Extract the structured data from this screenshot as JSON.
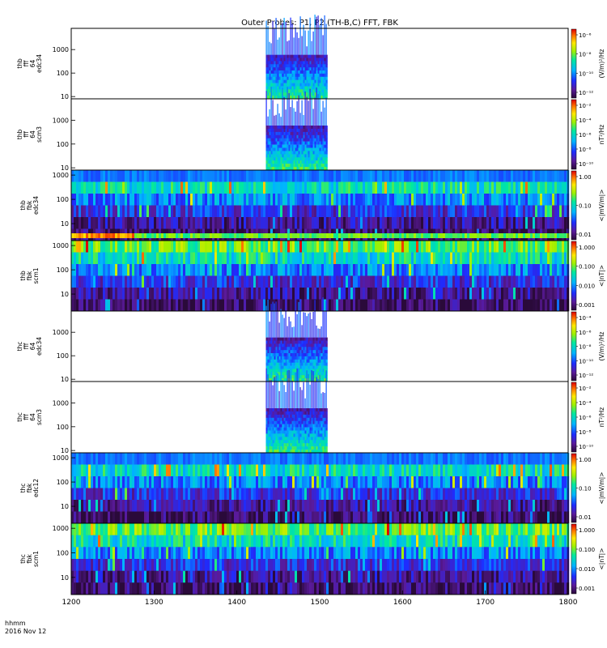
{
  "title": "Outer Probes: P1, P2 (TH-B,C) FFT, FBK",
  "time_label": {
    "line1": "hhmm",
    "line2": "2016 Nov 12"
  },
  "chart_data": {
    "type": "heatmap",
    "x_ticks": [
      "1200",
      "1300",
      "1400",
      "1500",
      "1600",
      "1700",
      "1800"
    ],
    "x_range": [
      1200,
      1800
    ],
    "panels": [
      {
        "ylabel": [
          "thb",
          "fff",
          "64",
          "edc34"
        ],
        "y_ticks": [
          "1000",
          "100",
          "10"
        ],
        "y_range": [
          8,
          8000
        ],
        "active_range": [
          1435,
          1508
        ],
        "colorbar_unit": "(V/m)²/Hz",
        "colorbar_ticks": [
          "10⁻⁶",
          "10⁻⁸",
          "10⁻¹⁰",
          "10⁻¹²"
        ]
      },
      {
        "ylabel": [
          "thb",
          "fff",
          "64",
          "scm3"
        ],
        "y_ticks": [
          "1000",
          "100",
          "10"
        ],
        "y_range": [
          8,
          8000
        ],
        "active_range": [
          1435,
          1508
        ],
        "colorbar_unit": "nT²/Hz",
        "colorbar_ticks": [
          "10⁻²",
          "10⁻⁴",
          "10⁻⁶",
          "10⁻⁸",
          "10⁻¹⁰"
        ]
      },
      {
        "ylabel": [
          "thb",
          "fbk",
          "edc34"
        ],
        "y_ticks": [
          "1000",
          "100",
          "10"
        ],
        "y_range": [
          2,
          1600
        ],
        "active_range": [
          1200,
          1800
        ],
        "colorbar_unit": "<|mV/m|>",
        "colorbar_ticks": [
          "1.00",
          "0.10",
          "0.01"
        ]
      },
      {
        "ylabel": [
          "thb",
          "fbk",
          "scm1"
        ],
        "y_ticks": [
          "1000",
          "100",
          "10"
        ],
        "y_range": [
          2,
          1600
        ],
        "active_range": [
          1200,
          1800
        ],
        "colorbar_unit": "<|nT|>",
        "colorbar_ticks": [
          "1.000",
          "0.100",
          "0.010",
          "0.001"
        ]
      },
      {
        "ylabel": [
          "thc",
          "fff",
          "64",
          "edc34"
        ],
        "y_ticks": [
          "1000",
          "100",
          "10"
        ],
        "y_range": [
          8,
          8000
        ],
        "active_range": [
          1435,
          1508
        ],
        "colorbar_unit": "(V/m)²/Hz",
        "colorbar_ticks": [
          "10⁻⁴",
          "10⁻⁶",
          "10⁻⁸",
          "10⁻¹⁰",
          "10⁻¹²"
        ]
      },
      {
        "ylabel": [
          "thc",
          "fff",
          "64",
          "scm3"
        ],
        "y_ticks": [
          "1000",
          "100",
          "10"
        ],
        "y_range": [
          8,
          8000
        ],
        "active_range": [
          1435,
          1508
        ],
        "colorbar_unit": "nT²/Hz",
        "colorbar_ticks": [
          "10⁻²",
          "10⁻⁴",
          "10⁻⁶",
          "10⁻⁸",
          "10⁻¹⁰"
        ]
      },
      {
        "ylabel": [
          "thc",
          "fbk",
          "edc12"
        ],
        "y_ticks": [
          "1000",
          "100",
          "10"
        ],
        "y_range": [
          2,
          1600
        ],
        "active_range": [
          1200,
          1800
        ],
        "colorbar_unit": "<|mV/m|>",
        "colorbar_ticks": [
          "1.00",
          "0.10",
          "0.01"
        ]
      },
      {
        "ylabel": [
          "thc",
          "fbk",
          "scm1"
        ],
        "y_ticks": [
          "1000",
          "100",
          "10"
        ],
        "y_range": [
          2,
          1600
        ],
        "active_range": [
          1200,
          1800
        ],
        "colorbar_unit": "<|nT|>",
        "colorbar_ticks": [
          "1.000",
          "0.100",
          "0.010",
          "0.001"
        ]
      }
    ]
  }
}
